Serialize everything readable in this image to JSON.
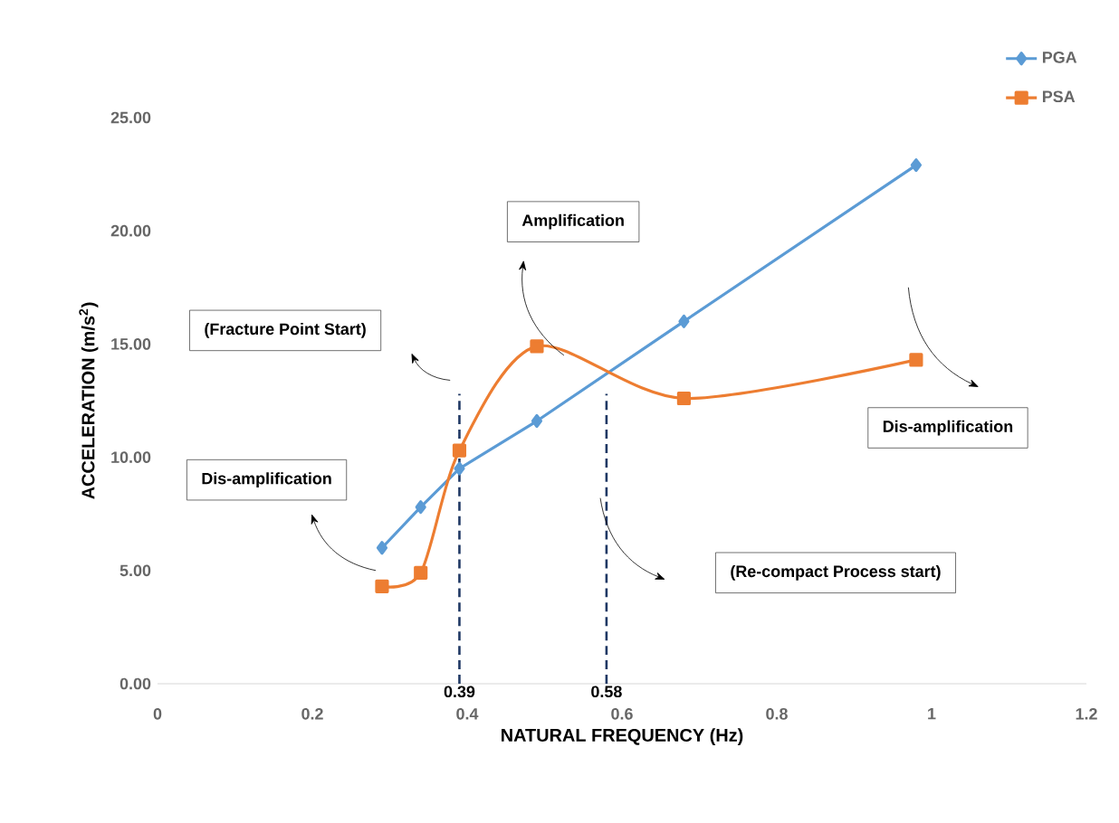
{
  "chart_data": {
    "type": "line",
    "xlabel": "NATURAL FREQUENCY (Hz)",
    "ylabel": "ACCELERATION (m/s$^{2}$)",
    "xlim": [
      0,
      1.2
    ],
    "xticks": [
      {
        "value": 0,
        "label": "0"
      },
      0.2,
      0.4,
      0.6,
      0.8,
      {
        "value": 1,
        "label": "1"
      },
      1.2
    ],
    "ylim": [
      0,
      25
    ],
    "yticks": [
      {
        "value": 0,
        "label": "0.00"
      },
      {
        "value": 5,
        "label": "5.00"
      },
      {
        "value": 10,
        "label": "10.00"
      },
      {
        "value": 15,
        "label": "15.00"
      },
      {
        "value": 20,
        "label": "20.00"
      },
      {
        "value": 25,
        "label": "25.00"
      }
    ],
    "grid": false,
    "legend": "top right",
    "series": [
      {
        "name": "PGA",
        "color": "#5b9bd5",
        "marker": "diamond",
        "x": [
          0.29,
          0.34,
          0.39,
          0.49,
          0.68,
          0.98
        ],
        "values": [
          6.0,
          7.8,
          9.5,
          11.6,
          16.0,
          22.9
        ]
      },
      {
        "name": "PSA",
        "color": "#ed7d31",
        "marker": "square",
        "x": [
          0.29,
          0.34,
          0.39,
          0.49,
          0.68,
          0.98
        ],
        "values": [
          4.3,
          4.9,
          10.3,
          14.9,
          12.6,
          14.3
        ]
      }
    ],
    "ref_lines": [
      {
        "axis": "x",
        "value": 0.39,
        "label": "0.39",
        "color": "#1f3864",
        "line_style": "dashed"
      },
      {
        "axis": "x",
        "value": 0.58,
        "label": "0.58",
        "color": "#1f3864",
        "line_style": "dashed"
      }
    ],
    "annotations": [
      "Dis-amplification",
      "(Fracture Point Start)",
      "Amplification",
      "(Re-compact Process start)",
      "Dis-amplification"
    ]
  }
}
